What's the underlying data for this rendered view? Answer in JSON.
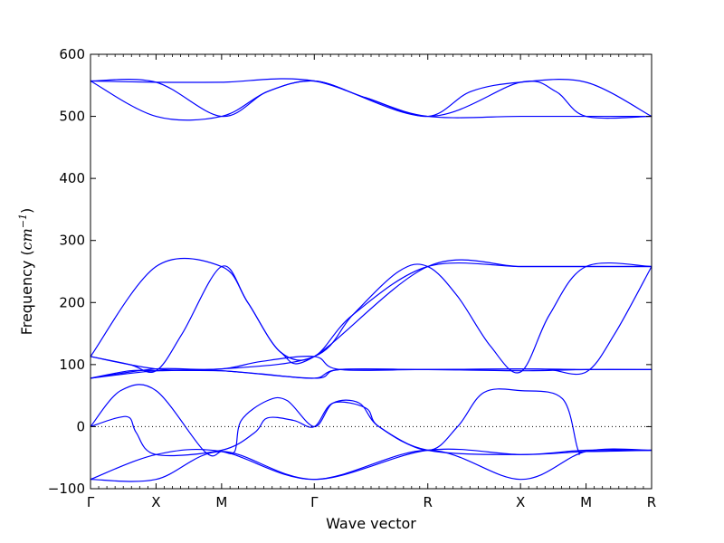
{
  "chart_data": {
    "type": "line",
    "title": "",
    "xlabel": "Wave vector",
    "ylabel_text": "Frequency (",
    "ylabel_unit_base": "cm",
    "ylabel_unit_exp": "−1",
    "ylabel_close": ")",
    "ylim": [
      -100,
      600
    ],
    "y_ticks": [
      -100,
      0,
      100,
      200,
      300,
      400,
      500,
      600
    ],
    "x_ticks": [
      {
        "label": "Γ",
        "x": 0.0
      },
      {
        "label": "X",
        "x": 0.5
      },
      {
        "label": "M",
        "x": 1.0
      },
      {
        "label": "Γ",
        "x": 1.707
      },
      {
        "label": "R",
        "x": 2.573
      },
      {
        "label": "X",
        "x": 3.28
      },
      {
        "label": "M",
        "x": 3.78
      },
      {
        "label": "R",
        "x": 4.28
      }
    ],
    "xlim": [
      0,
      4.28
    ],
    "zero_line": true,
    "line_color": "#0000ff",
    "series": [
      {
        "points": [
          [
            0,
            -85
          ],
          [
            0.5,
            -85
          ],
          [
            1,
            -40
          ],
          [
            1.707,
            -85
          ],
          [
            2.573,
            -38
          ],
          [
            3.28,
            -85
          ],
          [
            3.78,
            -40
          ],
          [
            4.28,
            -38
          ]
        ]
      },
      {
        "points": [
          [
            0,
            -85
          ],
          [
            0.5,
            -45
          ],
          [
            1,
            -40
          ],
          [
            1.707,
            -85
          ],
          [
            2.573,
            -38
          ],
          [
            3.28,
            -45
          ],
          [
            3.78,
            -40
          ],
          [
            4.28,
            -38
          ]
        ]
      },
      {
        "points": [
          [
            0,
            0
          ],
          [
            0.23,
            58
          ],
          [
            0.5,
            58
          ],
          [
            0.87,
            -40
          ],
          [
            1,
            -40
          ],
          [
            1.1,
            -40
          ],
          [
            1.15,
            10
          ],
          [
            1.35,
            42
          ],
          [
            1.5,
            42
          ],
          [
            1.707,
            0
          ],
          [
            1.85,
            38
          ],
          [
            2.05,
            38
          ],
          [
            2.2,
            0
          ],
          [
            2.573,
            -38
          ],
          [
            2.8,
            0
          ],
          [
            3.0,
            55
          ],
          [
            3.28,
            58
          ],
          [
            3.6,
            45
          ],
          [
            3.72,
            -38
          ],
          [
            3.78,
            -40
          ],
          [
            4.28,
            -38
          ]
        ]
      },
      {
        "points": [
          [
            0,
            0
          ],
          [
            0.2,
            14
          ],
          [
            0.3,
            14
          ],
          [
            0.35,
            -10
          ],
          [
            0.5,
            -45
          ],
          [
            1,
            -38
          ],
          [
            1.25,
            -10
          ],
          [
            1.35,
            14
          ],
          [
            1.55,
            10
          ],
          [
            1.707,
            0
          ],
          [
            1.85,
            38
          ],
          [
            2.1,
            30
          ],
          [
            2.2,
            0
          ],
          [
            2.573,
            -38
          ],
          [
            3.28,
            -45
          ],
          [
            3.78,
            -38
          ],
          [
            4.28,
            -38
          ]
        ]
      },
      {
        "points": [
          [
            0,
            78
          ],
          [
            0.5,
            93
          ],
          [
            1,
            93
          ],
          [
            1.707,
            113
          ],
          [
            2.0,
            180
          ],
          [
            2.35,
            250
          ],
          [
            2.573,
            258
          ],
          [
            2.8,
            210
          ],
          [
            3.05,
            130
          ],
          [
            3.28,
            88
          ],
          [
            3.5,
            180
          ],
          [
            3.78,
            258
          ],
          [
            4.28,
            258
          ]
        ]
      },
      {
        "points": [
          [
            0,
            113
          ],
          [
            0.5,
            258
          ],
          [
            1,
            258
          ],
          [
            1.2,
            200
          ],
          [
            1.45,
            120
          ],
          [
            1.707,
            113
          ],
          [
            2.0,
            180
          ],
          [
            2.573,
            258
          ],
          [
            3.28,
            258
          ],
          [
            3.78,
            258
          ],
          [
            4.28,
            258
          ]
        ]
      },
      {
        "points": [
          [
            0,
            113
          ],
          [
            0.3,
            100
          ],
          [
            0.5,
            90
          ],
          [
            0.7,
            150
          ],
          [
            1,
            258
          ],
          [
            1.2,
            200
          ],
          [
            1.45,
            120
          ],
          [
            1.707,
            113
          ],
          [
            2.573,
            258
          ],
          [
            3.28,
            258
          ],
          [
            3.78,
            258
          ],
          [
            4.28,
            258
          ]
        ]
      },
      {
        "points": [
          [
            0,
            78
          ],
          [
            0.3,
            90
          ],
          [
            0.5,
            90
          ],
          [
            1,
            90
          ],
          [
            1.707,
            78
          ],
          [
            1.9,
            92
          ],
          [
            2.573,
            92
          ],
          [
            3.28,
            93
          ],
          [
            3.5,
            92
          ],
          [
            3.78,
            88
          ],
          [
            4.0,
            150
          ],
          [
            4.28,
            258
          ]
        ]
      },
      {
        "points": [
          [
            0,
            113
          ],
          [
            0.5,
            93
          ],
          [
            1,
            90
          ],
          [
            1.3,
            85
          ],
          [
            1.707,
            78
          ],
          [
            1.9,
            92
          ],
          [
            2.573,
            92
          ],
          [
            3.28,
            93
          ],
          [
            3.78,
            92
          ],
          [
            4.28,
            92
          ]
        ]
      },
      {
        "points": [
          [
            0,
            78
          ],
          [
            0.5,
            90
          ],
          [
            1,
            93
          ],
          [
            1.3,
            105
          ],
          [
            1.707,
            113
          ],
          [
            1.9,
            92
          ],
          [
            2.573,
            92
          ],
          [
            3.28,
            90
          ],
          [
            3.78,
            92
          ],
          [
            4.28,
            92
          ]
        ]
      },
      {
        "points": [
          [
            0,
            557
          ],
          [
            0.5,
            500
          ],
          [
            1,
            500
          ],
          [
            1.35,
            540
          ],
          [
            1.707,
            557
          ],
          [
            2.1,
            530
          ],
          [
            2.573,
            500
          ],
          [
            3.28,
            500
          ],
          [
            3.78,
            500
          ],
          [
            4.28,
            500
          ]
        ]
      },
      {
        "points": [
          [
            0,
            557
          ],
          [
            0.5,
            555
          ],
          [
            1,
            500
          ],
          [
            1.35,
            540
          ],
          [
            1.707,
            557
          ],
          [
            2.1,
            530
          ],
          [
            2.573,
            500
          ],
          [
            2.9,
            540
          ],
          [
            3.28,
            555
          ],
          [
            3.78,
            555
          ],
          [
            4.28,
            500
          ]
        ]
      },
      {
        "points": [
          [
            0,
            557
          ],
          [
            0.5,
            555
          ],
          [
            1,
            555
          ],
          [
            1.707,
            557
          ],
          [
            2.573,
            500
          ],
          [
            3.28,
            555
          ],
          [
            3.55,
            540
          ],
          [
            3.78,
            500
          ],
          [
            4.28,
            500
          ]
        ]
      }
    ]
  }
}
